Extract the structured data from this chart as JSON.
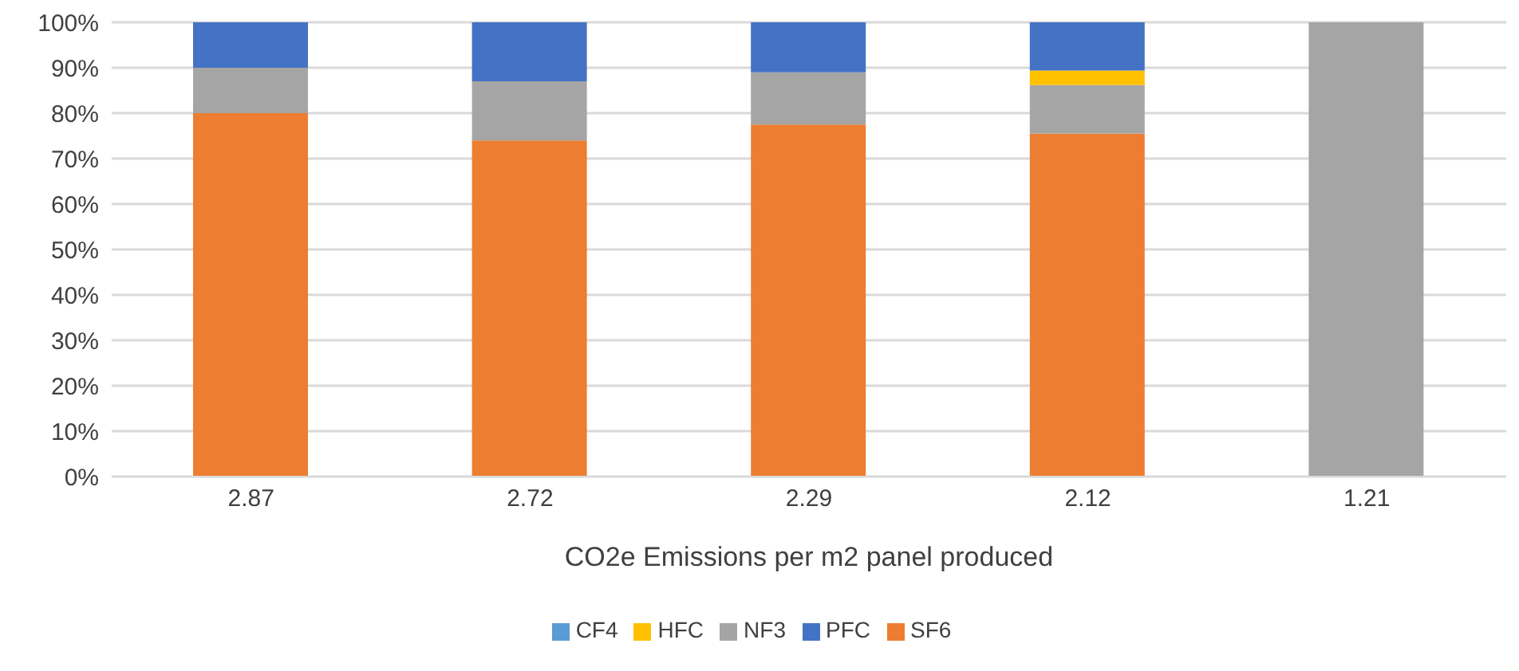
{
  "chart_data": {
    "type": "bar",
    "stacked": true,
    "xlabel": "CO2e Emissions per m2 panel produced",
    "categories": [
      "2.87",
      "2.72",
      "2.29",
      "2.12",
      "1.21"
    ],
    "series": [
      {
        "name": "CF4",
        "color": "#5b9bd5",
        "values": [
          0,
          0,
          0,
          0,
          0
        ]
      },
      {
        "name": "SF6",
        "color": "#ed7d31",
        "values": [
          80,
          74,
          77.5,
          75.5,
          0
        ]
      },
      {
        "name": "NF3",
        "color": "#a5a5a5",
        "values": [
          10,
          13,
          11.5,
          10.7,
          100
        ]
      },
      {
        "name": "HFC",
        "color": "#ffc000",
        "values": [
          0,
          0,
          0,
          3.2,
          0
        ]
      },
      {
        "name": "PFC",
        "color": "#4472c4",
        "values": [
          10,
          13,
          11,
          10.6,
          0
        ]
      }
    ],
    "ylim": [
      0,
      100
    ],
    "yticks": [
      {
        "value": 0,
        "label": "0%"
      },
      {
        "value": 10,
        "label": "10%"
      },
      {
        "value": 20,
        "label": "20%"
      },
      {
        "value": 30,
        "label": "30%"
      },
      {
        "value": 40,
        "label": "40%"
      },
      {
        "value": 50,
        "label": "50%"
      },
      {
        "value": 60,
        "label": "60%"
      },
      {
        "value": 70,
        "label": "70%"
      },
      {
        "value": 80,
        "label": "80%"
      },
      {
        "value": 90,
        "label": "90%"
      },
      {
        "value": 100,
        "label": "100%"
      }
    ],
    "grid": "y",
    "legend": "bottom"
  }
}
